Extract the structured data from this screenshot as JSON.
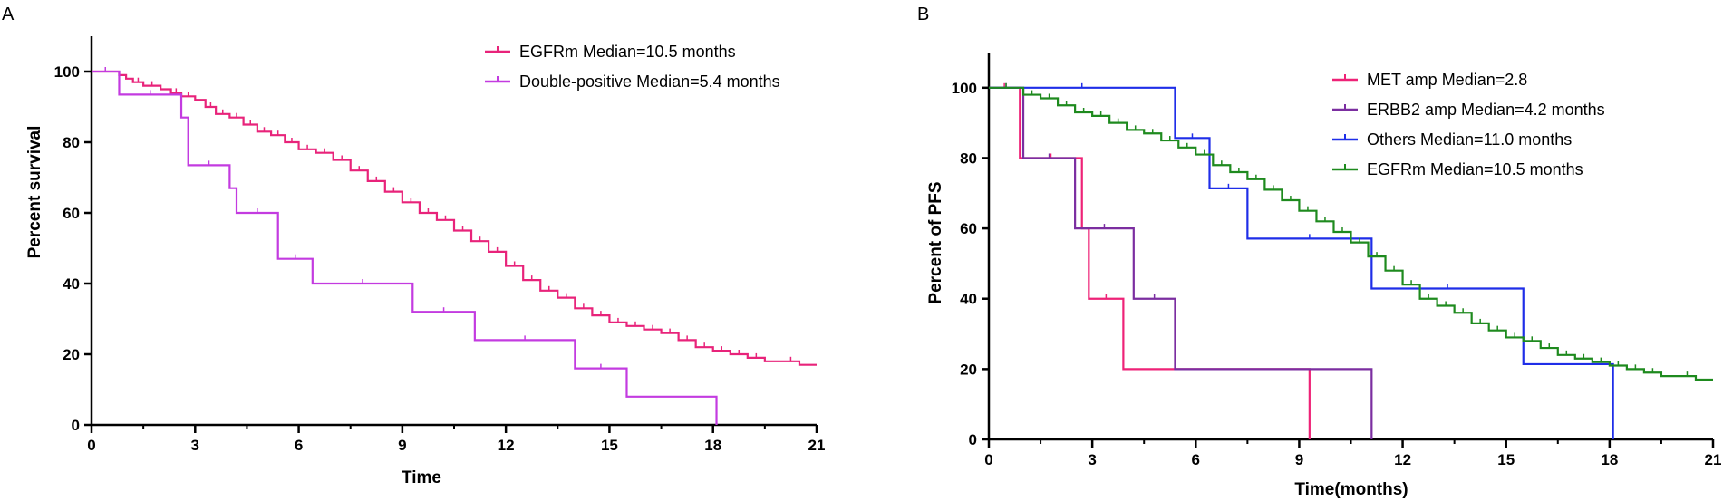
{
  "chart_data": [
    {
      "panel_label": "A",
      "type": "line",
      "subtype": "kaplan-meier",
      "xlabel": "Time",
      "ylabel": "Percent survival",
      "xlim": [
        0,
        21
      ],
      "ylim": [
        0,
        110
      ],
      "xticks": [
        0,
        3,
        6,
        9,
        12,
        15,
        18,
        21
      ],
      "yticks": [
        0,
        20,
        40,
        60,
        80,
        100
      ],
      "legend_position": "top-right",
      "series": [
        {
          "name": "EGFRm Median=10.5 months",
          "color": "#e8237a",
          "x": [
            0,
            0.8,
            1.0,
            1.2,
            1.5,
            2.0,
            2.3,
            2.6,
            3.0,
            3.3,
            3.6,
            4.0,
            4.4,
            4.8,
            5.2,
            5.6,
            6.0,
            6.5,
            7.0,
            7.5,
            8.0,
            8.5,
            9.0,
            9.5,
            10.0,
            10.5,
            11.0,
            11.5,
            12.0,
            12.5,
            13.0,
            13.5,
            14.0,
            14.5,
            15.0,
            15.5,
            16.0,
            16.5,
            17.0,
            17.5,
            18.0,
            18.5,
            19.0,
            19.5,
            20.0,
            20.5,
            21.0
          ],
          "y": [
            100,
            99,
            98,
            97,
            96,
            95,
            94,
            93,
            92,
            90,
            88,
            87,
            85,
            83,
            82,
            80,
            78,
            77,
            75,
            72,
            69,
            66,
            63,
            60,
            58,
            55,
            52,
            49,
            45,
            41,
            38,
            36,
            33,
            31,
            29,
            28,
            27,
            26,
            24,
            22,
            21,
            20,
            19,
            18,
            18,
            17,
            17
          ]
        },
        {
          "name": "Double-positive Median=5.4 months",
          "color": "#c33be0",
          "x": [
            0,
            0.8,
            2.6,
            2.8,
            4.0,
            4.2,
            5.4,
            6.4,
            9.3,
            11.1,
            14.0,
            15.5,
            18.1,
            18.1
          ],
          "y": [
            100,
            93.5,
            87,
            73.5,
            67,
            60,
            47,
            40,
            32,
            24,
            16,
            8,
            8,
            0
          ]
        }
      ]
    },
    {
      "panel_label": "B",
      "type": "line",
      "subtype": "kaplan-meier",
      "xlabel": "Time(months)",
      "ylabel": "Percent of PFS",
      "xlim": [
        0,
        21
      ],
      "ylim": [
        0,
        110
      ],
      "xticks": [
        0,
        3,
        6,
        9,
        12,
        15,
        18,
        21
      ],
      "yticks": [
        0,
        20,
        40,
        60,
        80,
        100
      ],
      "legend_position": "top-right",
      "series": [
        {
          "name": "MET amp Median=2.8",
          "color": "#ee2277",
          "x": [
            0,
            0.9,
            2.7,
            2.9,
            3.9,
            9.3,
            9.3
          ],
          "y": [
            100,
            80,
            60,
            40,
            20,
            20,
            0
          ]
        },
        {
          "name": "ERBB2 amp Median=4.2 months",
          "color": "#7b2ea0",
          "x": [
            0,
            1.0,
            2.5,
            4.2,
            5.4,
            11.1,
            11.1
          ],
          "y": [
            100,
            80,
            60,
            40,
            20,
            20,
            0
          ]
        },
        {
          "name": "Others Median=11.0 months",
          "color": "#1f2ee8",
          "x": [
            0,
            5.4,
            6.4,
            7.5,
            11.1,
            15.5,
            18.1,
            18.1
          ],
          "y": [
            100,
            85.7,
            71.4,
            57.1,
            42.9,
            21.4,
            21.4,
            0
          ]
        },
        {
          "name": "EGFRm Median=10.5 months",
          "color": "#1e8a1e",
          "x": [
            0,
            1.0,
            1.5,
            2.0,
            2.5,
            3.0,
            3.5,
            4.0,
            4.5,
            5.0,
            5.5,
            6.0,
            6.5,
            7.0,
            7.5,
            8.0,
            8.5,
            9.0,
            9.5,
            10.0,
            10.5,
            11.0,
            11.5,
            12.0,
            12.5,
            13.0,
            13.5,
            14.0,
            14.5,
            15.0,
            15.5,
            16.0,
            16.5,
            17.0,
            17.5,
            18.0,
            18.5,
            19.0,
            19.5,
            20.0,
            20.5,
            21.0
          ],
          "y": [
            100,
            98,
            97,
            95,
            93,
            92,
            90,
            88,
            87,
            85,
            83,
            81,
            78,
            76,
            74,
            71,
            68,
            65,
            62,
            59,
            56,
            52,
            48,
            44,
            40,
            38,
            36,
            33,
            31,
            29,
            28,
            26,
            24,
            23,
            22,
            21,
            20,
            19,
            18,
            18,
            17,
            17
          ]
        }
      ]
    }
  ]
}
